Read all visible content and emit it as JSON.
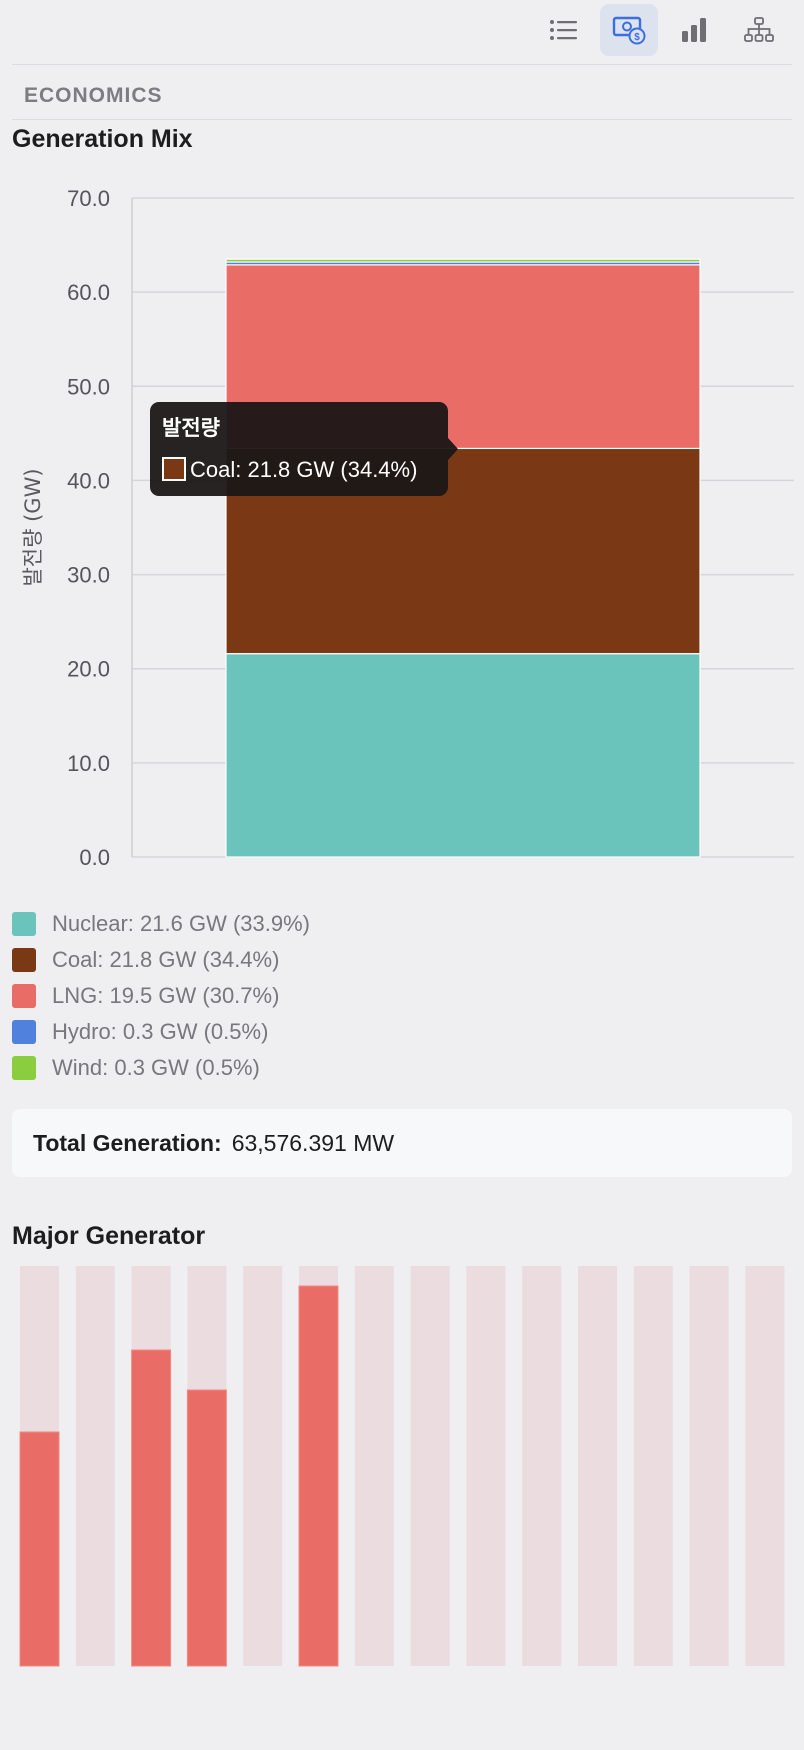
{
  "toolbar": {
    "buttons": [
      {
        "icon": "list-icon",
        "active": false
      },
      {
        "icon": "economics-money-icon",
        "active": true
      },
      {
        "icon": "bar-chart-icon",
        "active": false
      },
      {
        "icon": "hierarchy-icon",
        "active": false
      }
    ]
  },
  "section": {
    "label": "ECONOMICS"
  },
  "generation_mix": {
    "title": "Generation Mix"
  },
  "tooltip": {
    "title": "발전량",
    "text": "Coal: 21.8 GW (34.4%)",
    "color": "#7a3815"
  },
  "legend": [
    {
      "label": "Nuclear: 21.6 GW (33.9%)",
      "color": "#6bc4bb"
    },
    {
      "label": "Coal: 21.8 GW (34.4%)",
      "color": "#7a3815"
    },
    {
      "label": "LNG: 19.5 GW (30.7%)",
      "color": "#e96c66"
    },
    {
      "label": "Hydro: 0.3 GW (0.5%)",
      "color": "#4f82dd"
    },
    {
      "label": "Wind: 0.3 GW (0.5%)",
      "color": "#8acd3f"
    }
  ],
  "total": {
    "label": "Total Generation:",
    "value": "63,576.391 MW"
  },
  "major_generator": {
    "title": "Major Generator"
  },
  "chart_data": [
    {
      "type": "bar",
      "stacked": true,
      "categories": [
        ""
      ],
      "ylabel": "발전량 (GW)",
      "ylim": [
        0,
        70
      ],
      "yticks": [
        "0.0",
        "10.0",
        "20.0",
        "30.0",
        "40.0",
        "50.0",
        "60.0",
        "70.0"
      ],
      "grid": true,
      "series": [
        {
          "name": "Nuclear",
          "values": [
            21.6
          ],
          "color": "#6bc4bb"
        },
        {
          "name": "Coal",
          "values": [
            21.8
          ],
          "color": "#7a3815"
        },
        {
          "name": "LNG",
          "values": [
            19.5
          ],
          "color": "#e96c66"
        },
        {
          "name": "Hydro",
          "values": [
            0.3
          ],
          "color": "#4f82dd"
        },
        {
          "name": "Wind",
          "values": [
            0.3
          ],
          "color": "#8acd3f"
        }
      ]
    },
    {
      "type": "bar",
      "ylim": [
        0,
        1
      ],
      "values": [
        0.585,
        0,
        0.79,
        0.69,
        0,
        0.95,
        0,
        0,
        0,
        0,
        0,
        0,
        0,
        0
      ],
      "fill_color": "#e96c66",
      "track_color": "#eadcdf"
    }
  ]
}
